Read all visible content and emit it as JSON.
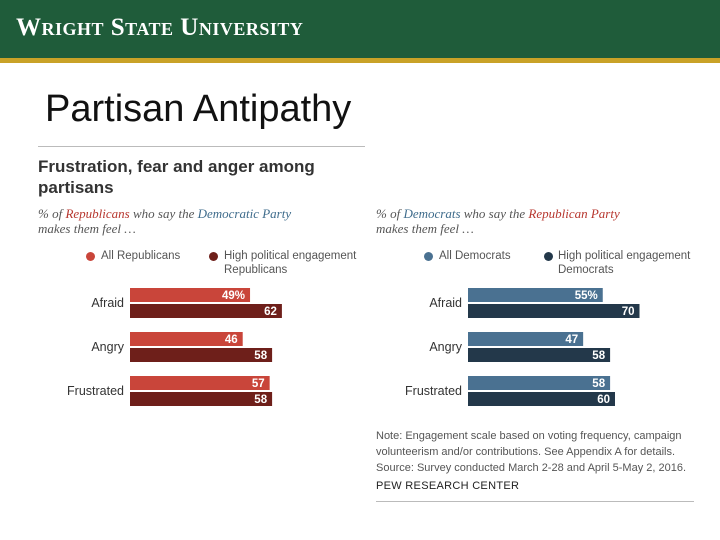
{
  "header": {
    "university": "Wright State University"
  },
  "slide_title": "Partisan Antipathy",
  "chart_heading": "Frustration, fear and anger among partisans",
  "left_panel": {
    "subtitle_pre": "% of ",
    "subtitle_party": "Republicans",
    "subtitle_mid": " who say the ",
    "subtitle_target": "Democratic Party",
    "subtitle_post": "makes them feel …",
    "legend_all": "All Republicans",
    "legend_high_1": "High political engagement",
    "legend_high_2": "Republicans"
  },
  "right_panel": {
    "subtitle_pre": "% of ",
    "subtitle_party": "Democrats",
    "subtitle_mid": " who say the ",
    "subtitle_target": "Republican Party",
    "subtitle_post": "makes them feel …",
    "legend_all": "All Democrats",
    "legend_high_1": "High political engagement",
    "legend_high_2": "Democrats"
  },
  "note": "Note: Engagement scale based on voting frequency, campaign volunteerism and/or contributions. See Appendix A for details. Source: Survey conducted March 2-28 and April 5-May 2, 2016.",
  "source": "PEW RESEARCH CENTER",
  "colors": {
    "header_green": "#1f5c3a",
    "header_gold": "#c9a227",
    "rep_all": "#c9453a",
    "rep_high": "#6e1f1a",
    "dem_all": "#4a7191",
    "dem_high": "#23384a"
  },
  "chart_data": [
    {
      "type": "bar",
      "orientation": "horizontal",
      "categories": [
        "Afraid",
        "Angry",
        "Frustrated"
      ],
      "series": [
        {
          "name": "All Republicans",
          "values": [
            49,
            46,
            57
          ],
          "labels": [
            "49%",
            "46",
            "57"
          ]
        },
        {
          "name": "High political engagement Republicans",
          "values": [
            62,
            58,
            58
          ],
          "labels": [
            "62",
            "58",
            "58"
          ]
        }
      ]
    },
    {
      "type": "bar",
      "orientation": "horizontal",
      "categories": [
        "Afraid",
        "Angry",
        "Frustrated"
      ],
      "series": [
        {
          "name": "All Democrats",
          "values": [
            55,
            47,
            58
          ],
          "labels": [
            "55%",
            "47",
            "58"
          ]
        },
        {
          "name": "High political engagement Democrats",
          "values": [
            70,
            58,
            60
          ],
          "labels": [
            "70",
            "58",
            "60"
          ]
        }
      ]
    }
  ]
}
